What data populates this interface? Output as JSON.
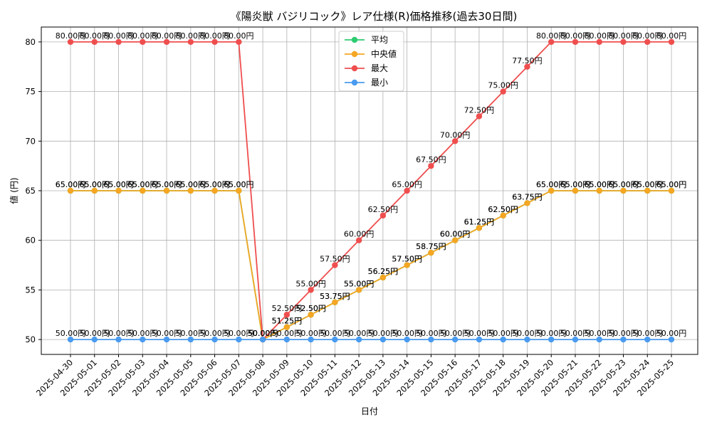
{
  "chart_data": {
    "type": "line",
    "title": "《陽炎獣 バジリコック》レア仕様(R)価格推移(過去30日間)",
    "xlabel": "日付",
    "ylabel": "値 (円)",
    "ylim": [
      48.5,
      81.5
    ],
    "yticks": [
      50,
      55,
      60,
      65,
      70,
      75,
      80
    ],
    "grid": true,
    "legend_position": "top-center",
    "label_suffix": "円",
    "categories": [
      "2025-04-30",
      "2025-05-01",
      "2025-05-02",
      "2025-05-03",
      "2025-05-04",
      "2025-05-05",
      "2025-05-06",
      "2025-05-07",
      "2025-05-08",
      "2025-05-09",
      "2025-05-10",
      "2025-05-11",
      "2025-05-12",
      "2025-05-13",
      "2025-05-14",
      "2025-05-15",
      "2025-05-16",
      "2025-05-17",
      "2025-05-18",
      "2025-05-19",
      "2025-05-20",
      "2025-05-21",
      "2025-05-22",
      "2025-05-23",
      "2025-05-24",
      "2025-05-25"
    ],
    "series": [
      {
        "name": "平均",
        "color": "#2ecc71",
        "values": [
          65,
          65,
          65,
          65,
          65,
          65,
          65,
          65,
          50,
          51.25,
          52.5,
          53.75,
          55,
          56.25,
          57.5,
          58.75,
          60,
          61.25,
          62.5,
          63.75,
          65,
          65,
          65,
          65,
          65,
          65
        ]
      },
      {
        "name": "中央値",
        "color": "#f5a623",
        "values": [
          65,
          65,
          65,
          65,
          65,
          65,
          65,
          65,
          50,
          51.25,
          52.5,
          53.75,
          55,
          56.25,
          57.5,
          58.75,
          60,
          61.25,
          62.5,
          63.75,
          65,
          65,
          65,
          65,
          65,
          65
        ]
      },
      {
        "name": "最大",
        "color": "#ef4e4e",
        "values": [
          80,
          80,
          80,
          80,
          80,
          80,
          80,
          80,
          50,
          52.5,
          55,
          57.5,
          60,
          62.5,
          65,
          67.5,
          70,
          72.5,
          75,
          77.5,
          80,
          80,
          80,
          80,
          80,
          80
        ]
      },
      {
        "name": "最小",
        "color": "#4a9bf0",
        "values": [
          50,
          50,
          50,
          50,
          50,
          50,
          50,
          50,
          50,
          50,
          50,
          50,
          50,
          50,
          50,
          50,
          50,
          50,
          50,
          50,
          50,
          50,
          50,
          50,
          50,
          50
        ]
      }
    ]
  }
}
